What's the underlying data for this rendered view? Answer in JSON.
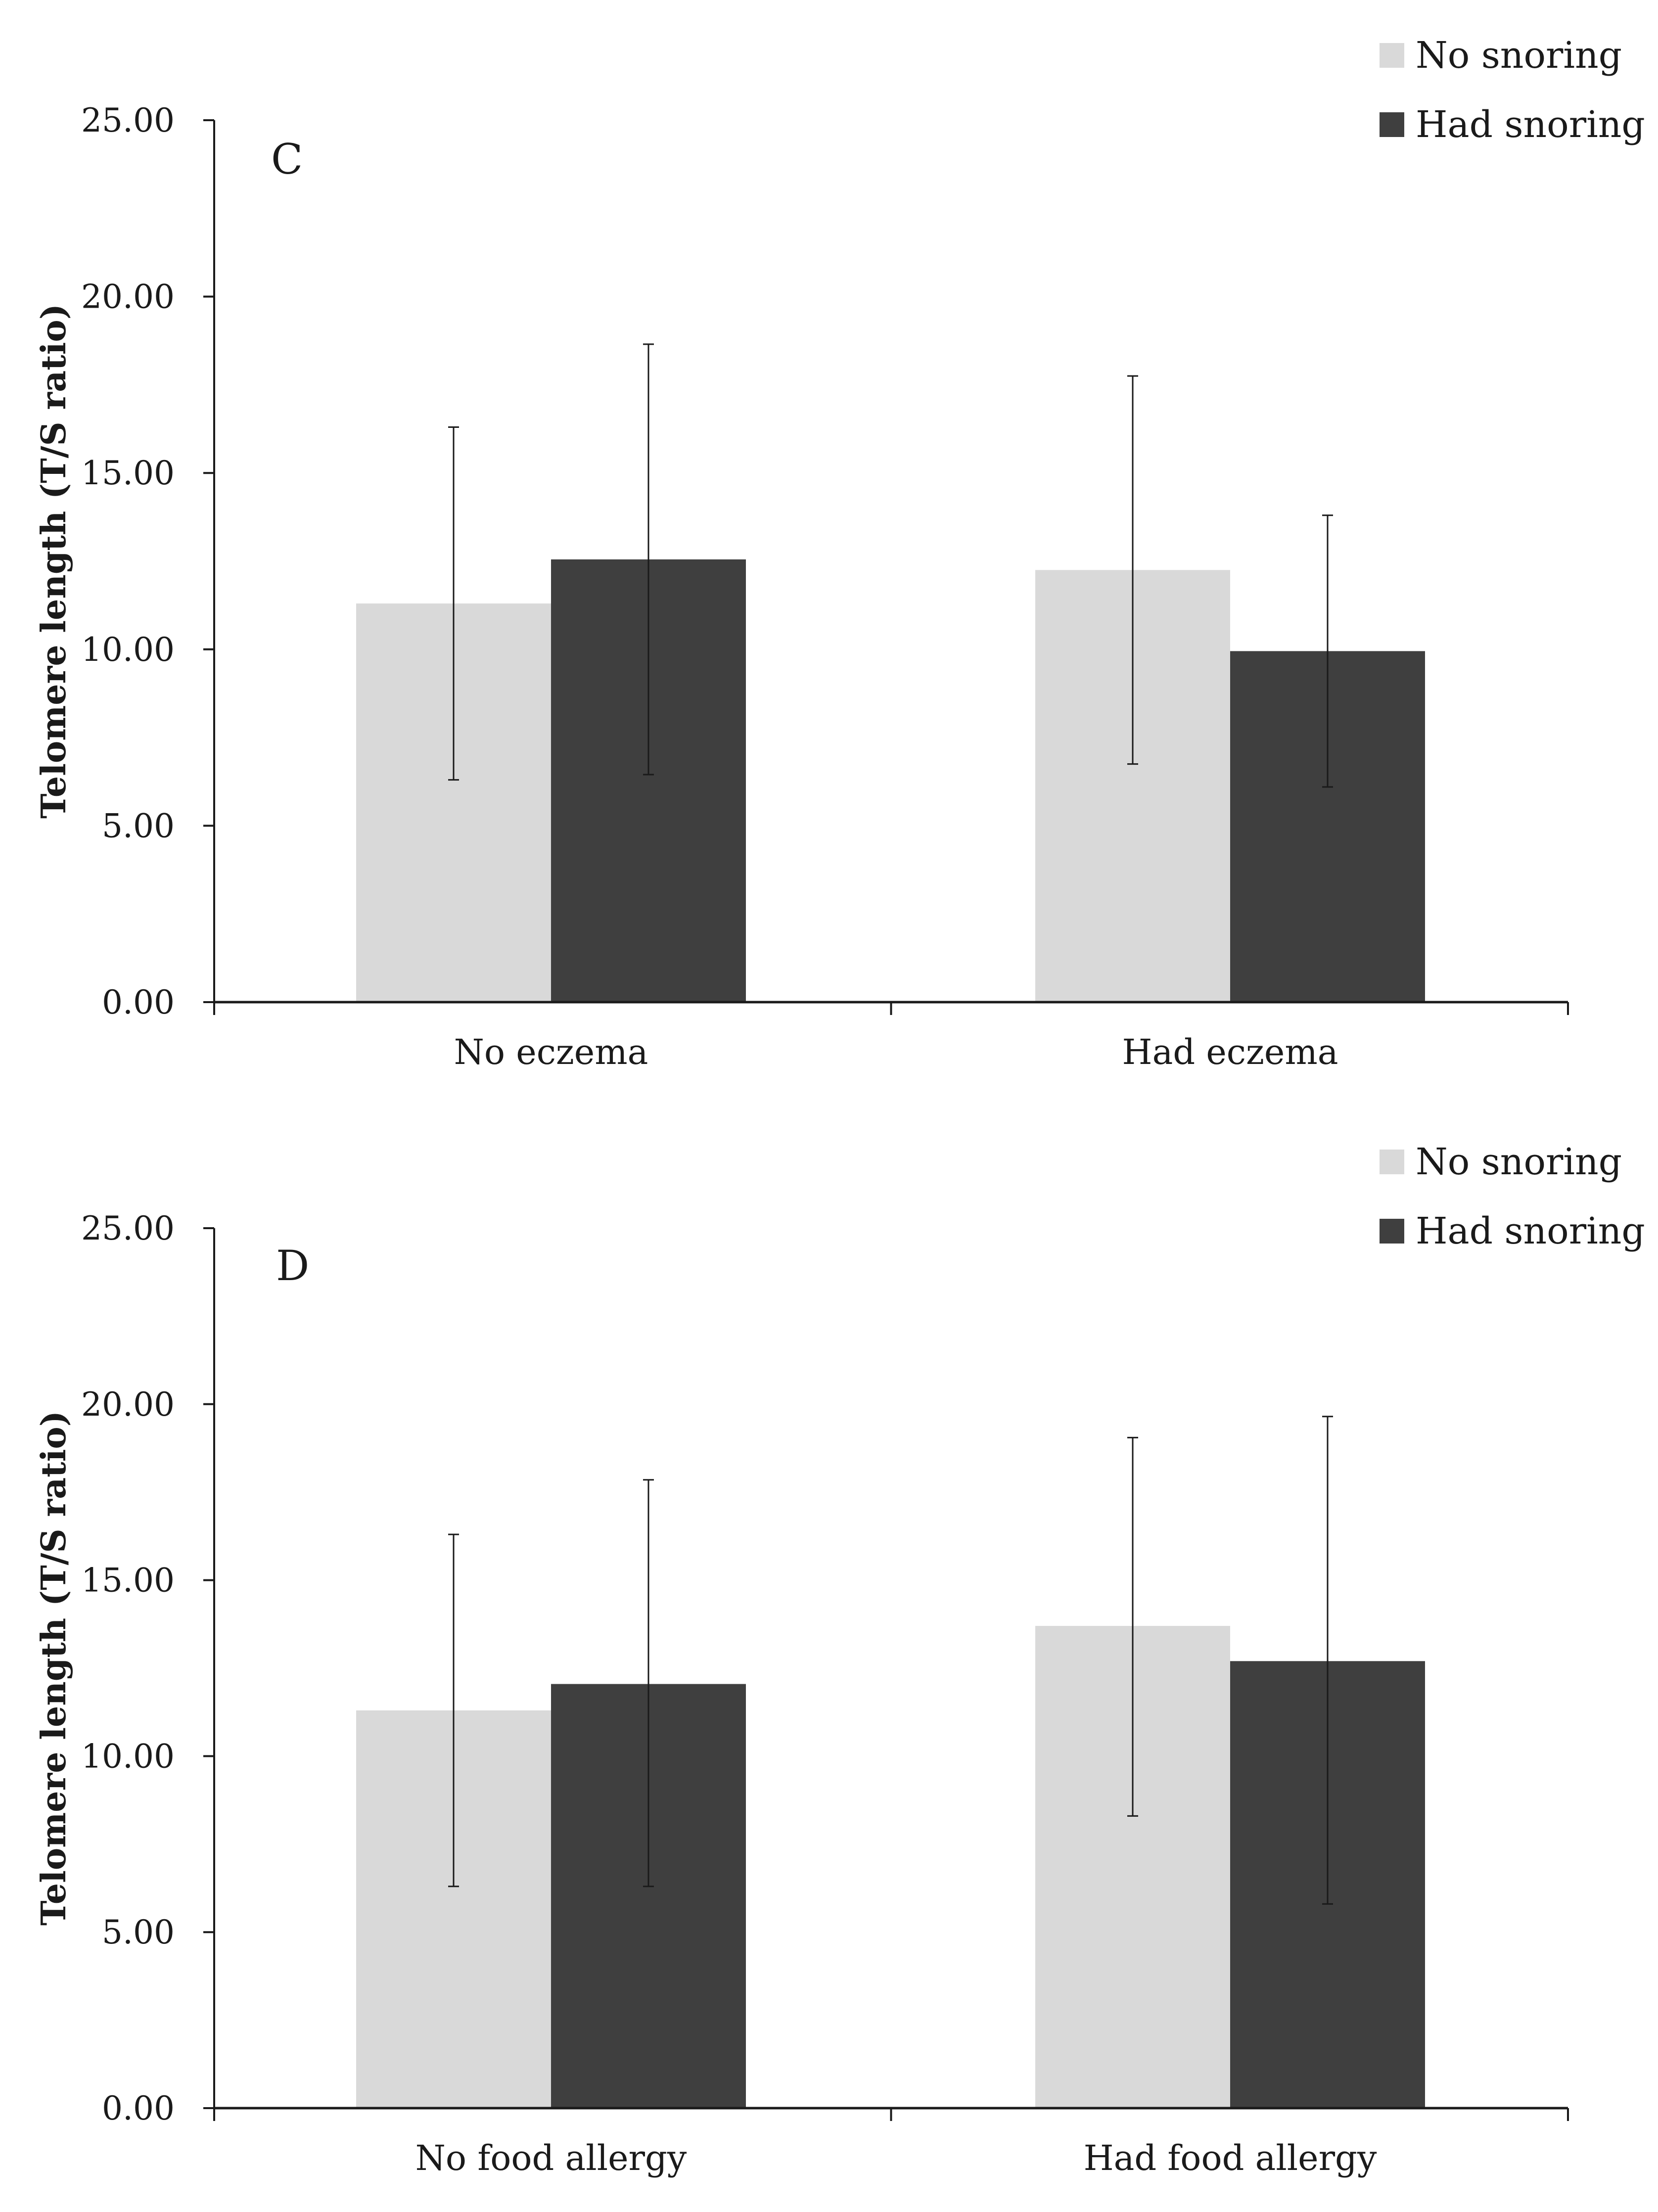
{
  "colors": {
    "no_snoring": "#d9d9d9",
    "had_snoring": "#3f3f3f",
    "axis": "#1a1a1a",
    "error_bar": "#1a1a1a"
  },
  "chart_data": [
    {
      "type": "bar",
      "panel_label": "C",
      "title": "",
      "xlabel": "",
      "ylabel": "Telomere length (T/S ratio)",
      "ylim": [
        0,
        25
      ],
      "yticks": [
        0,
        5,
        10,
        15,
        20,
        25
      ],
      "ytick_labels": [
        "0.00",
        "5.00",
        "10.00",
        "15.00",
        "20.00",
        "25.00"
      ],
      "grid": false,
      "legend_position": "top-right",
      "categories": [
        "No eczema",
        "Had eczema"
      ],
      "series": [
        {
          "name": "No snoring",
          "values": [
            11.3,
            12.25
          ],
          "error_low": [
            6.3,
            6.75
          ],
          "error_high": [
            16.3,
            17.75
          ]
        },
        {
          "name": "Had snoring",
          "values": [
            12.55,
            9.95
          ],
          "error_low": [
            6.45,
            6.1
          ],
          "error_high": [
            18.65,
            13.8
          ]
        }
      ]
    },
    {
      "type": "bar",
      "panel_label": "D",
      "title": "",
      "xlabel": "",
      "ylabel": "Telomere length (T/S ratio)",
      "ylim": [
        0,
        25
      ],
      "yticks": [
        0,
        5,
        10,
        15,
        20,
        25
      ],
      "ytick_labels": [
        "0.00",
        "5.00",
        "10.00",
        "15.00",
        "20.00",
        "25.00"
      ],
      "grid": false,
      "legend_position": "top-right",
      "categories": [
        "No food allergy",
        "Had food allergy"
      ],
      "series": [
        {
          "name": "No snoring",
          "values": [
            11.3,
            13.7
          ],
          "error_low": [
            6.3,
            8.3
          ],
          "error_high": [
            16.3,
            19.05
          ]
        },
        {
          "name": "Had snoring",
          "values": [
            12.05,
            12.7
          ],
          "error_low": [
            6.3,
            5.8
          ],
          "error_high": [
            17.85,
            19.65
          ]
        }
      ]
    }
  ]
}
